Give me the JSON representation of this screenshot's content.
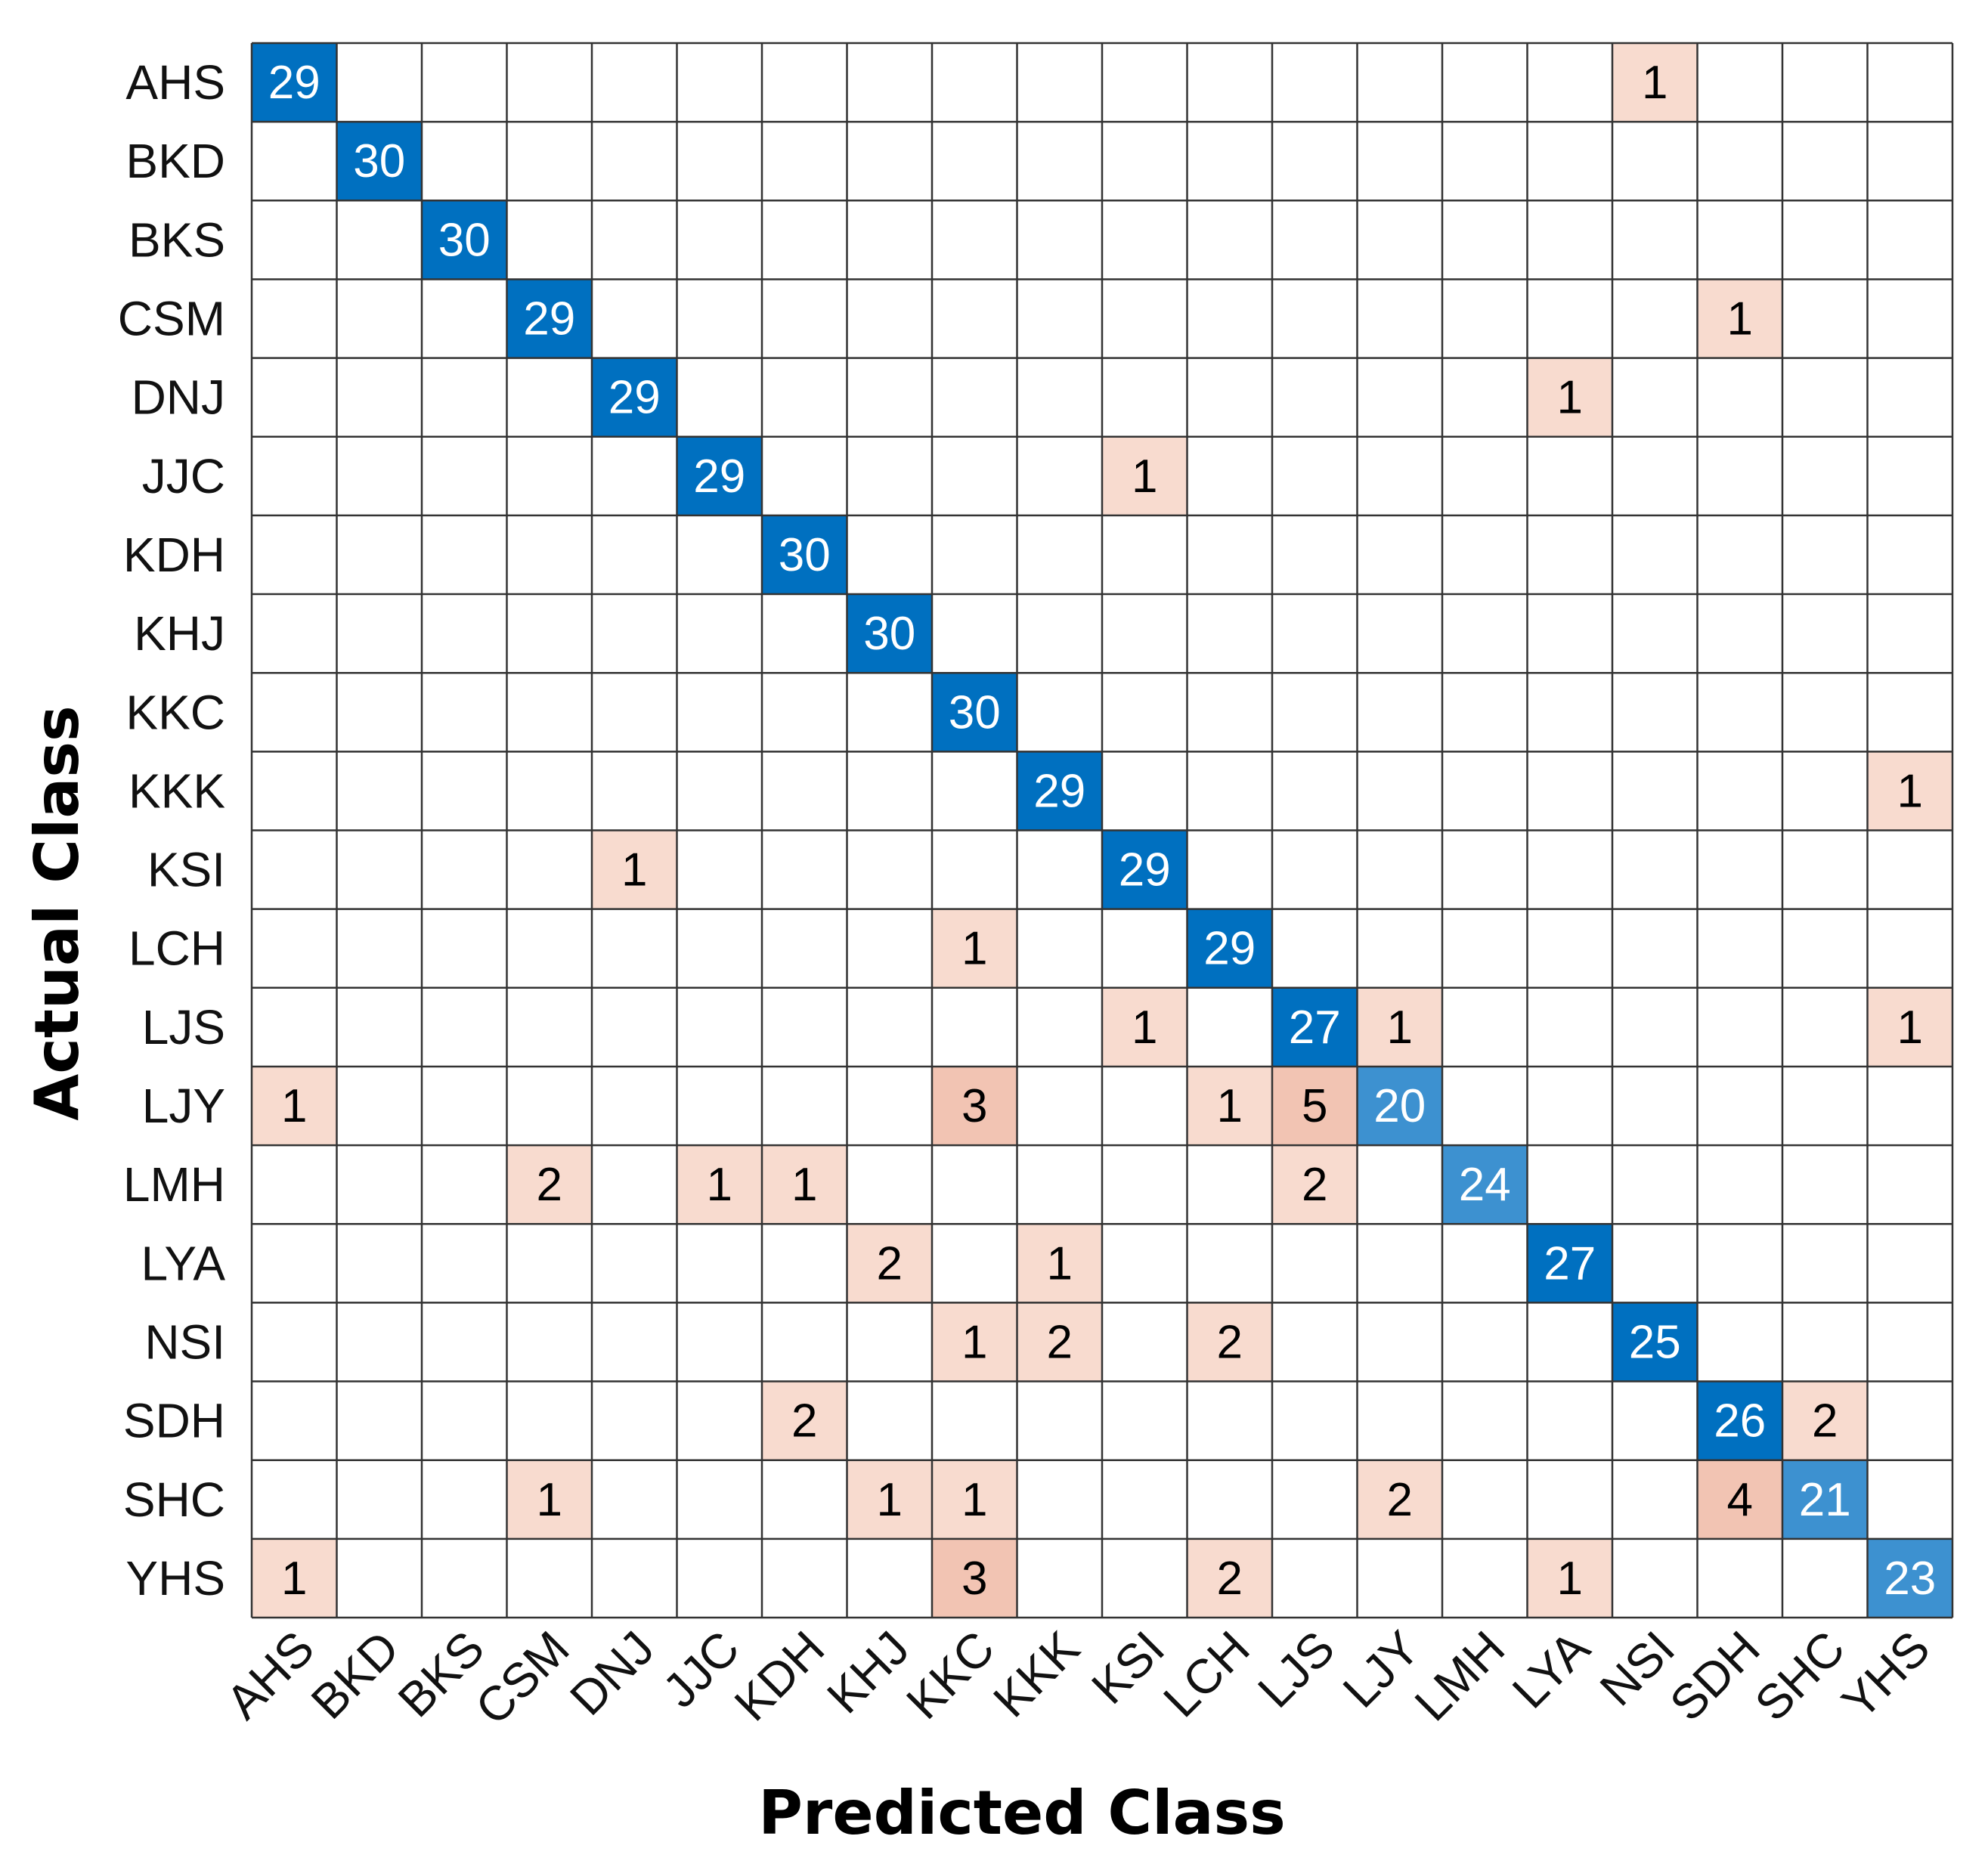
{
  "chart_data": {
    "type": "heatmap",
    "title": "",
    "xlabel": "Predicted Class",
    "ylabel": "Actual Class",
    "x_categories": [
      "AHS",
      "BKD",
      "BKS",
      "CSM",
      "DNJ",
      "JJC",
      "KDH",
      "KHJ",
      "KKC",
      "KKK",
      "KSI",
      "LCH",
      "LJS",
      "LJY",
      "LMH",
      "LYA",
      "NSI",
      "SDH",
      "SHC",
      "YHS"
    ],
    "y_categories": [
      "AHS",
      "BKD",
      "BKS",
      "CSM",
      "DNJ",
      "JJC",
      "KDH",
      "KHJ",
      "KKC",
      "KKK",
      "KSI",
      "LCH",
      "LJS",
      "LJY",
      "LMH",
      "LYA",
      "NSI",
      "SDH",
      "SHC",
      "YHS"
    ],
    "matrix": [
      [
        29,
        0,
        0,
        0,
        0,
        0,
        0,
        0,
        0,
        0,
        0,
        0,
        0,
        0,
        0,
        0,
        1,
        0,
        0,
        0
      ],
      [
        0,
        30,
        0,
        0,
        0,
        0,
        0,
        0,
        0,
        0,
        0,
        0,
        0,
        0,
        0,
        0,
        0,
        0,
        0,
        0
      ],
      [
        0,
        0,
        30,
        0,
        0,
        0,
        0,
        0,
        0,
        0,
        0,
        0,
        0,
        0,
        0,
        0,
        0,
        0,
        0,
        0
      ],
      [
        0,
        0,
        0,
        29,
        0,
        0,
        0,
        0,
        0,
        0,
        0,
        0,
        0,
        0,
        0,
        0,
        0,
        1,
        0,
        0
      ],
      [
        0,
        0,
        0,
        0,
        29,
        0,
        0,
        0,
        0,
        0,
        0,
        0,
        0,
        0,
        0,
        1,
        0,
        0,
        0,
        0
      ],
      [
        0,
        0,
        0,
        0,
        0,
        29,
        0,
        0,
        0,
        0,
        1,
        0,
        0,
        0,
        0,
        0,
        0,
        0,
        0,
        0
      ],
      [
        0,
        0,
        0,
        0,
        0,
        0,
        30,
        0,
        0,
        0,
        0,
        0,
        0,
        0,
        0,
        0,
        0,
        0,
        0,
        0
      ],
      [
        0,
        0,
        0,
        0,
        0,
        0,
        0,
        30,
        0,
        0,
        0,
        0,
        0,
        0,
        0,
        0,
        0,
        0,
        0,
        0
      ],
      [
        0,
        0,
        0,
        0,
        0,
        0,
        0,
        0,
        30,
        0,
        0,
        0,
        0,
        0,
        0,
        0,
        0,
        0,
        0,
        0
      ],
      [
        0,
        0,
        0,
        0,
        0,
        0,
        0,
        0,
        0,
        29,
        0,
        0,
        0,
        0,
        0,
        0,
        0,
        0,
        0,
        1
      ],
      [
        0,
        0,
        0,
        0,
        1,
        0,
        0,
        0,
        0,
        0,
        29,
        0,
        0,
        0,
        0,
        0,
        0,
        0,
        0,
        0
      ],
      [
        0,
        0,
        0,
        0,
        0,
        0,
        0,
        0,
        1,
        0,
        0,
        29,
        0,
        0,
        0,
        0,
        0,
        0,
        0,
        0
      ],
      [
        0,
        0,
        0,
        0,
        0,
        0,
        0,
        0,
        0,
        0,
        1,
        0,
        27,
        1,
        0,
        0,
        0,
        0,
        0,
        1
      ],
      [
        1,
        0,
        0,
        0,
        0,
        0,
        0,
        0,
        3,
        0,
        0,
        1,
        5,
        20,
        0,
        0,
        0,
        0,
        0,
        0
      ],
      [
        0,
        0,
        0,
        2,
        0,
        1,
        1,
        0,
        0,
        0,
        0,
        0,
        2,
        0,
        24,
        0,
        0,
        0,
        0,
        0
      ],
      [
        0,
        0,
        0,
        0,
        0,
        0,
        0,
        2,
        0,
        1,
        0,
        0,
        0,
        0,
        0,
        27,
        0,
        0,
        0,
        0
      ],
      [
        0,
        0,
        0,
        0,
        0,
        0,
        0,
        0,
        1,
        2,
        0,
        2,
        0,
        0,
        0,
        0,
        25,
        0,
        0,
        0
      ],
      [
        0,
        0,
        0,
        0,
        0,
        0,
        2,
        0,
        0,
        0,
        0,
        0,
        0,
        0,
        0,
        0,
        0,
        26,
        2,
        0
      ],
      [
        0,
        0,
        0,
        1,
        0,
        0,
        0,
        1,
        1,
        0,
        0,
        0,
        0,
        2,
        0,
        0,
        0,
        4,
        21,
        0
      ],
      [
        1,
        0,
        0,
        0,
        0,
        0,
        0,
        0,
        3,
        0,
        0,
        2,
        0,
        0,
        0,
        1,
        0,
        0,
        0,
        23
      ]
    ],
    "show_zero_values": false,
    "grid": true,
    "colors": {
      "diagonal_dark": "#0070c0",
      "diagonal_light": "#3d91d0",
      "off_diagonal_light": "#f8dbcf",
      "off_diagonal_dark": "#f2c4b3",
      "diagonal_text": "#ffffff",
      "off_diagonal_text": "#000000",
      "grid_line": "#333333",
      "background": "#ffffff"
    }
  }
}
